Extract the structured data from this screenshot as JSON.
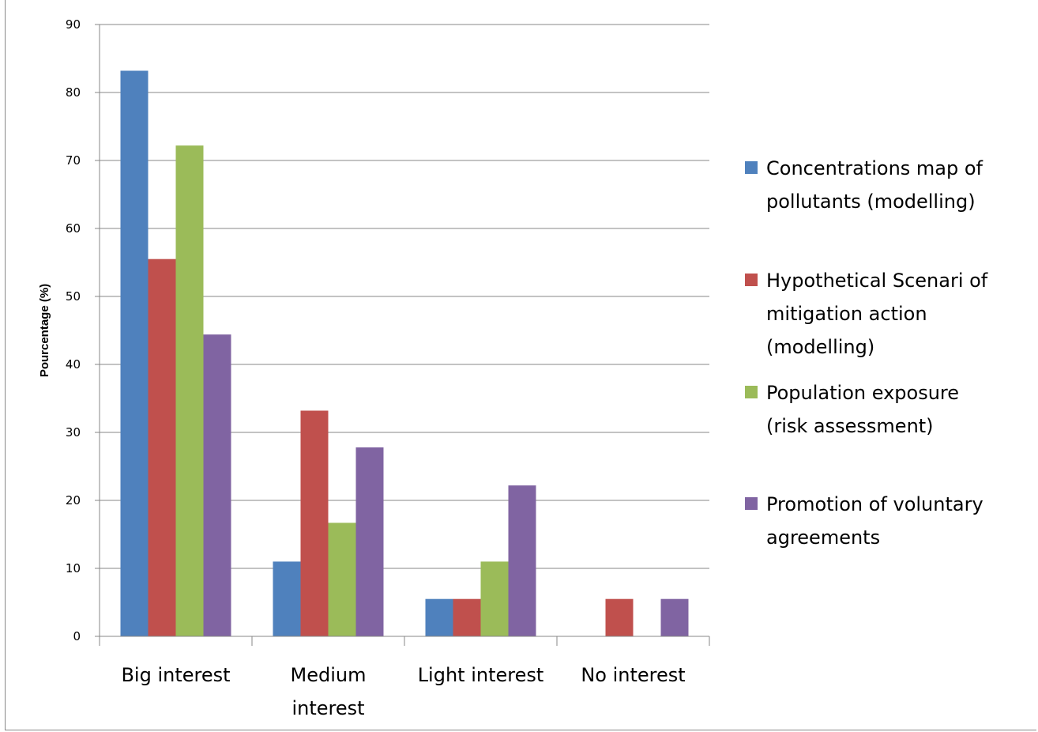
{
  "chart_data": {
    "type": "bar",
    "title": "",
    "xlabel": "",
    "ylabel": "Pourcentage (%)",
    "ylim": [
      0,
      90
    ],
    "yticks": [
      0,
      10,
      20,
      30,
      40,
      50,
      60,
      70,
      80,
      90
    ],
    "grid": true,
    "legend_position": "right",
    "categories": [
      "Big interest",
      "Medium interest",
      "Light interest",
      "No interest"
    ],
    "category_lines": [
      [
        "Big interest"
      ],
      [
        "Medium",
        "interest"
      ],
      [
        "Light interest"
      ],
      [
        "No interest"
      ]
    ],
    "series": [
      {
        "name": "Concentrations map of pollutants (modelling)",
        "legend_lines": [
          "Concentrations map of",
          "pollutants (modelling)"
        ],
        "color": "#4F81BD",
        "values": [
          83.2,
          11.0,
          5.5,
          0
        ]
      },
      {
        "name": "Hypothetical Scenari of mitigation action (modelling)",
        "legend_lines": [
          "Hypothetical Scenari of",
          "mitigation action",
          "(modelling)"
        ],
        "color": "#C0504D",
        "values": [
          55.5,
          33.2,
          5.5,
          5.5
        ]
      },
      {
        "name": "Population exposure (risk assessment)",
        "legend_lines": [
          "Population exposure",
          "(risk assessment)"
        ],
        "color": "#9BBB59",
        "values": [
          72.2,
          16.7,
          11.0,
          0
        ]
      },
      {
        "name": "Promotion of voluntary agreements",
        "legend_lines": [
          "Promotion of voluntary",
          "agreements"
        ],
        "color": "#8064A2",
        "values": [
          44.4,
          27.8,
          22.2,
          5.5
        ]
      }
    ]
  }
}
